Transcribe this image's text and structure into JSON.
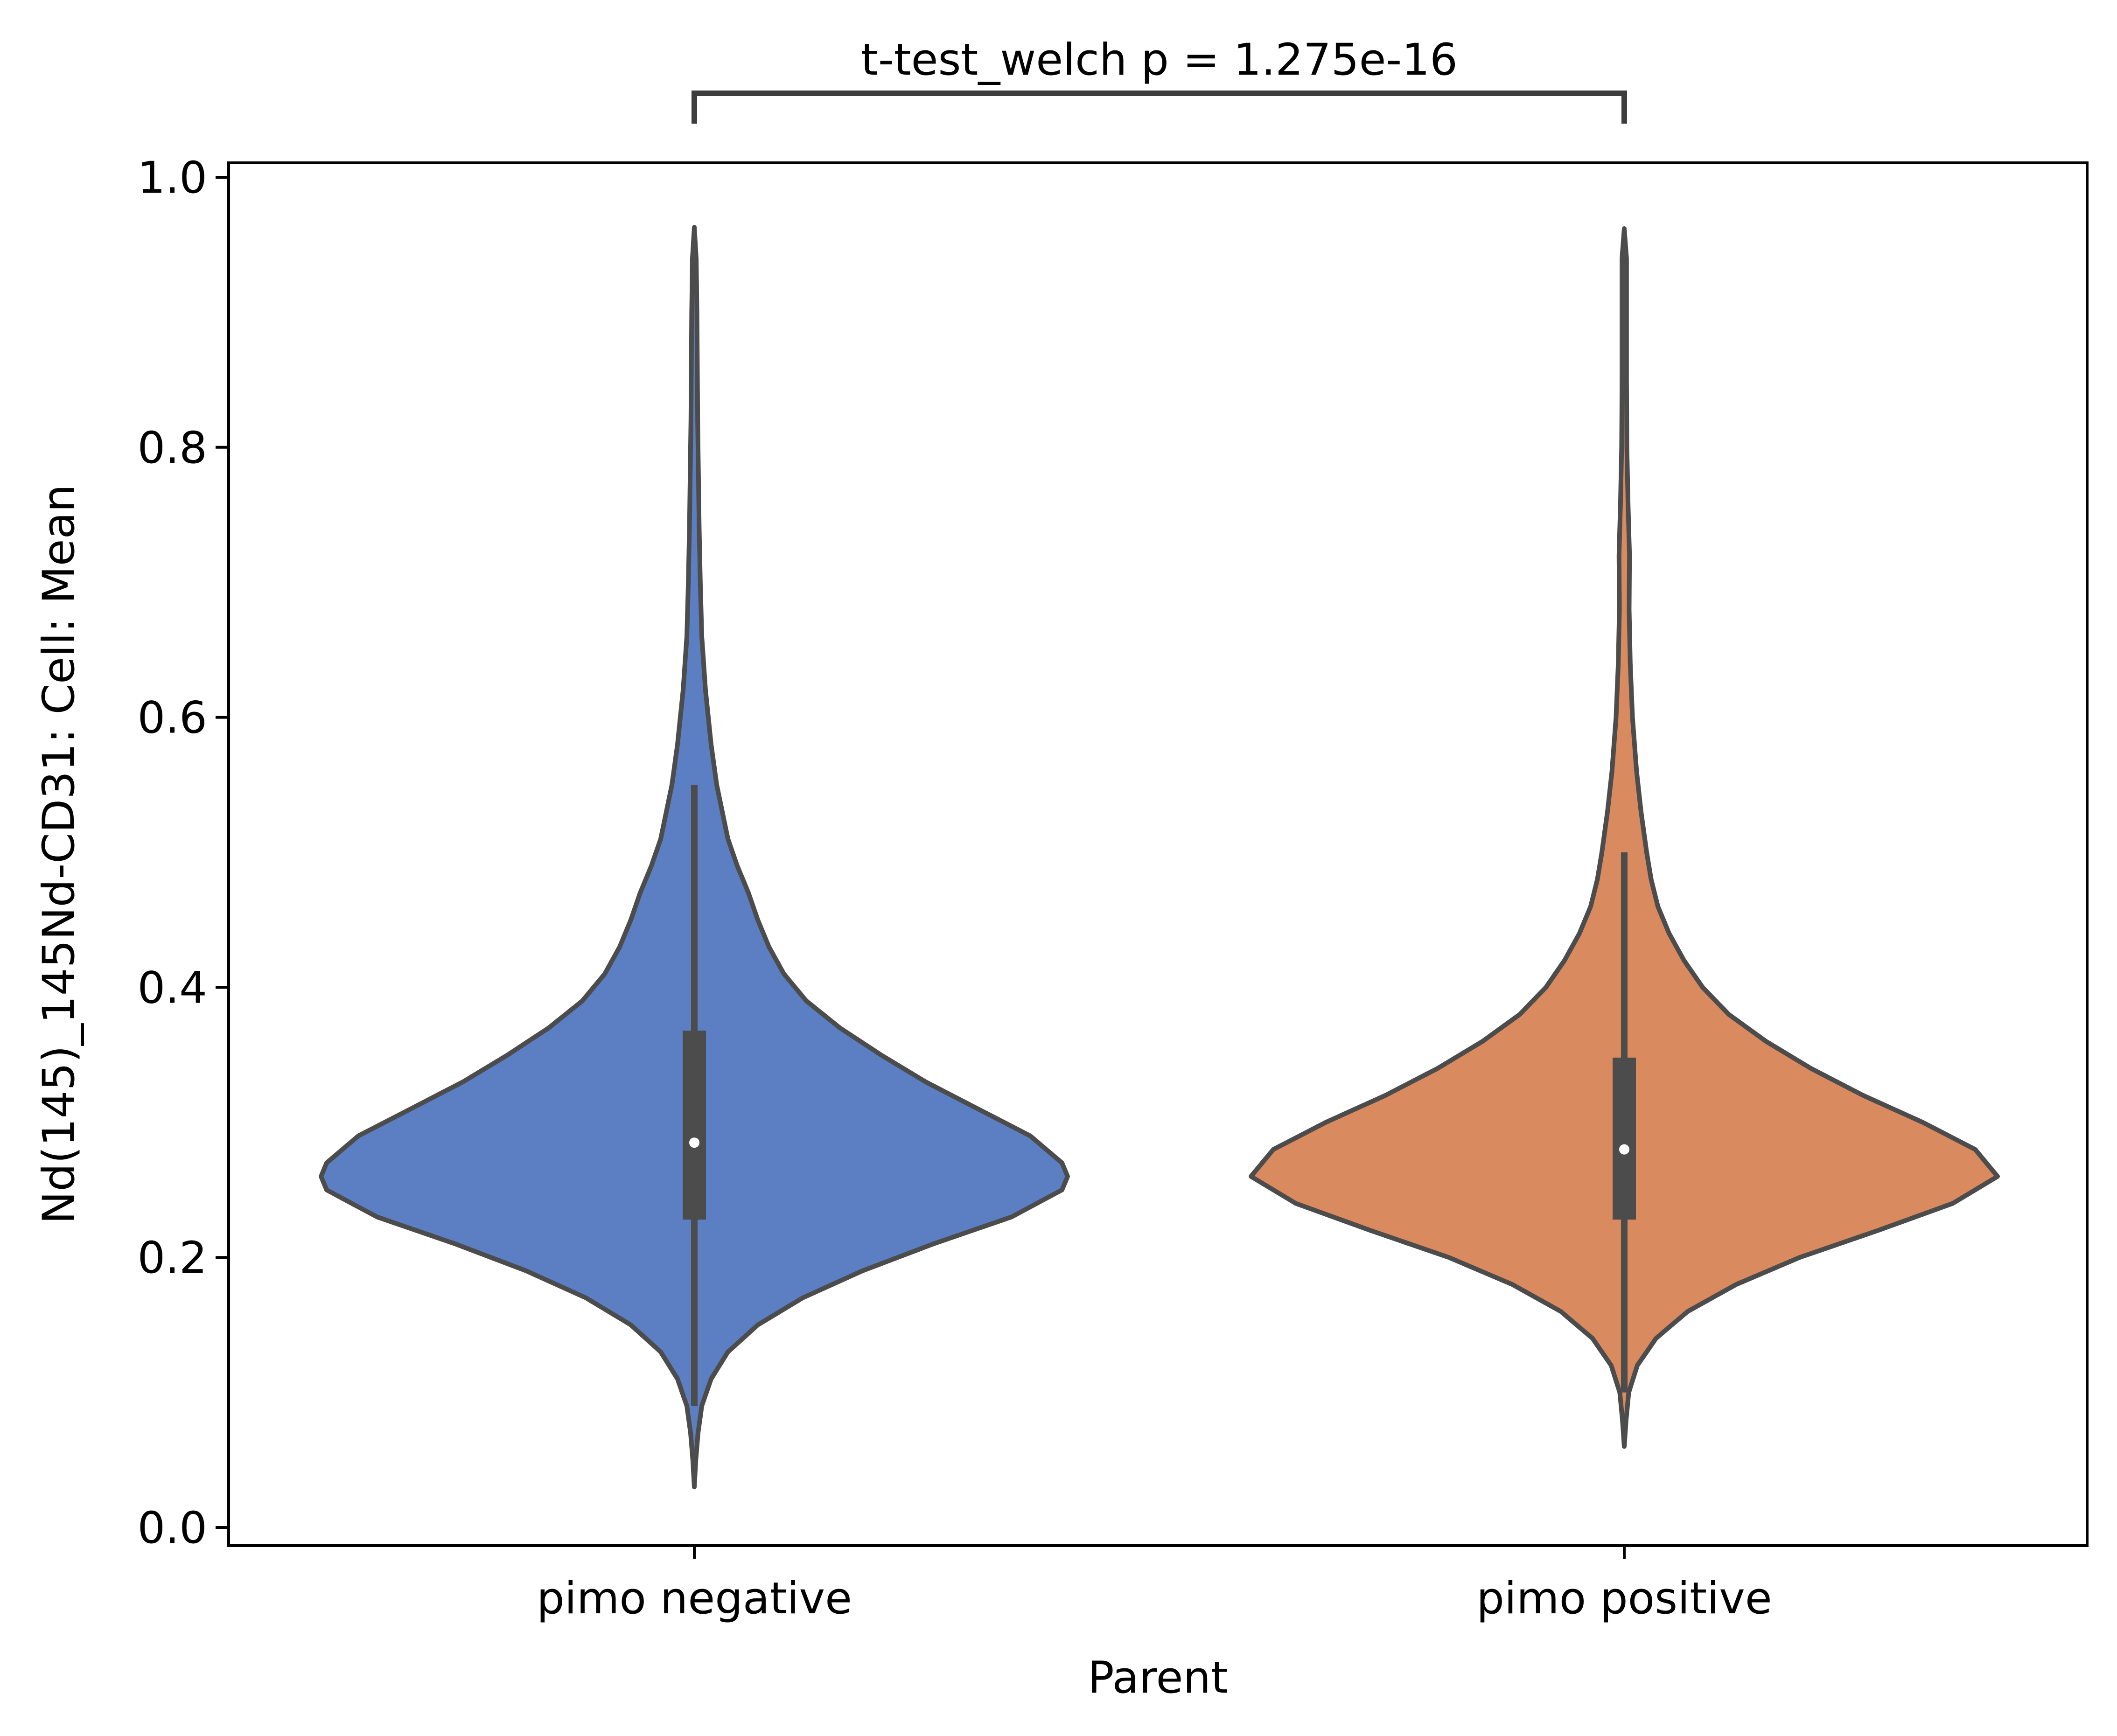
{
  "chart_data": {
    "type": "violin",
    "xlabel": "Parent",
    "ylabel": "Nd(145)_145Nd-CD31: Cell: Mean",
    "ylim": [
      -0.02,
      1.012
    ],
    "yticks": [
      0.0,
      0.2,
      0.4,
      0.6,
      0.8,
      1.0
    ],
    "ytick_labels": [
      "0.0",
      "0.2",
      "0.4",
      "0.6",
      "0.8",
      "1.0"
    ],
    "grid": false,
    "categories": [
      "pimo negative",
      "pimo positive"
    ],
    "violins": [
      {
        "category": "pimo negative",
        "color": "#5b7fc2",
        "min": 0.03,
        "max": 0.963,
        "whisker_low": 0.09,
        "q1": 0.228,
        "median": 0.285,
        "q3": 0.368,
        "whisker_high": 0.55,
        "density": [
          [
            0.03,
            0.0
          ],
          [
            0.05,
            0.004
          ],
          [
            0.07,
            0.01
          ],
          [
            0.09,
            0.02
          ],
          [
            0.11,
            0.045
          ],
          [
            0.13,
            0.09
          ],
          [
            0.15,
            0.17
          ],
          [
            0.17,
            0.29
          ],
          [
            0.19,
            0.45
          ],
          [
            0.21,
            0.64
          ],
          [
            0.23,
            0.85
          ],
          [
            0.25,
            0.985
          ],
          [
            0.26,
            1.0
          ],
          [
            0.27,
            0.985
          ],
          [
            0.29,
            0.9
          ],
          [
            0.31,
            0.76
          ],
          [
            0.33,
            0.62
          ],
          [
            0.35,
            0.5
          ],
          [
            0.37,
            0.39
          ],
          [
            0.39,
            0.3
          ],
          [
            0.41,
            0.24
          ],
          [
            0.43,
            0.2
          ],
          [
            0.45,
            0.17
          ],
          [
            0.47,
            0.145
          ],
          [
            0.49,
            0.115
          ],
          [
            0.51,
            0.09
          ],
          [
            0.53,
            0.075
          ],
          [
            0.55,
            0.06
          ],
          [
            0.58,
            0.045
          ],
          [
            0.62,
            0.03
          ],
          [
            0.66,
            0.02
          ],
          [
            0.7,
            0.016
          ],
          [
            0.74,
            0.013
          ],
          [
            0.78,
            0.011
          ],
          [
            0.82,
            0.009
          ],
          [
            0.86,
            0.008
          ],
          [
            0.9,
            0.007
          ],
          [
            0.94,
            0.005
          ],
          [
            0.963,
            0.0
          ]
        ]
      },
      {
        "category": "pimo positive",
        "color": "#d98a5f",
        "min": 0.06,
        "max": 0.962,
        "whisker_low": 0.1,
        "q1": 0.228,
        "median": 0.28,
        "q3": 0.348,
        "whisker_high": 0.5,
        "density": [
          [
            0.06,
            0.0
          ],
          [
            0.08,
            0.005
          ],
          [
            0.1,
            0.012
          ],
          [
            0.12,
            0.035
          ],
          [
            0.14,
            0.085
          ],
          [
            0.16,
            0.17
          ],
          [
            0.18,
            0.3
          ],
          [
            0.2,
            0.47
          ],
          [
            0.22,
            0.68
          ],
          [
            0.24,
            0.88
          ],
          [
            0.26,
            1.0
          ],
          [
            0.28,
            0.94
          ],
          [
            0.3,
            0.8
          ],
          [
            0.32,
            0.64
          ],
          [
            0.34,
            0.5
          ],
          [
            0.36,
            0.38
          ],
          [
            0.38,
            0.28
          ],
          [
            0.4,
            0.21
          ],
          [
            0.42,
            0.16
          ],
          [
            0.44,
            0.12
          ],
          [
            0.46,
            0.09
          ],
          [
            0.48,
            0.072
          ],
          [
            0.5,
            0.06
          ],
          [
            0.53,
            0.045
          ],
          [
            0.56,
            0.033
          ],
          [
            0.6,
            0.022
          ],
          [
            0.64,
            0.016
          ],
          [
            0.68,
            0.013
          ],
          [
            0.72,
            0.014
          ],
          [
            0.76,
            0.01
          ],
          [
            0.8,
            0.007
          ],
          [
            0.85,
            0.006
          ],
          [
            0.9,
            0.006
          ],
          [
            0.94,
            0.006
          ],
          [
            0.962,
            0.0
          ]
        ]
      }
    ],
    "annotations": [
      {
        "text": "t-test_welch p = 1.275e-16",
        "between": [
          "pimo negative",
          "pimo positive"
        ]
      }
    ]
  }
}
